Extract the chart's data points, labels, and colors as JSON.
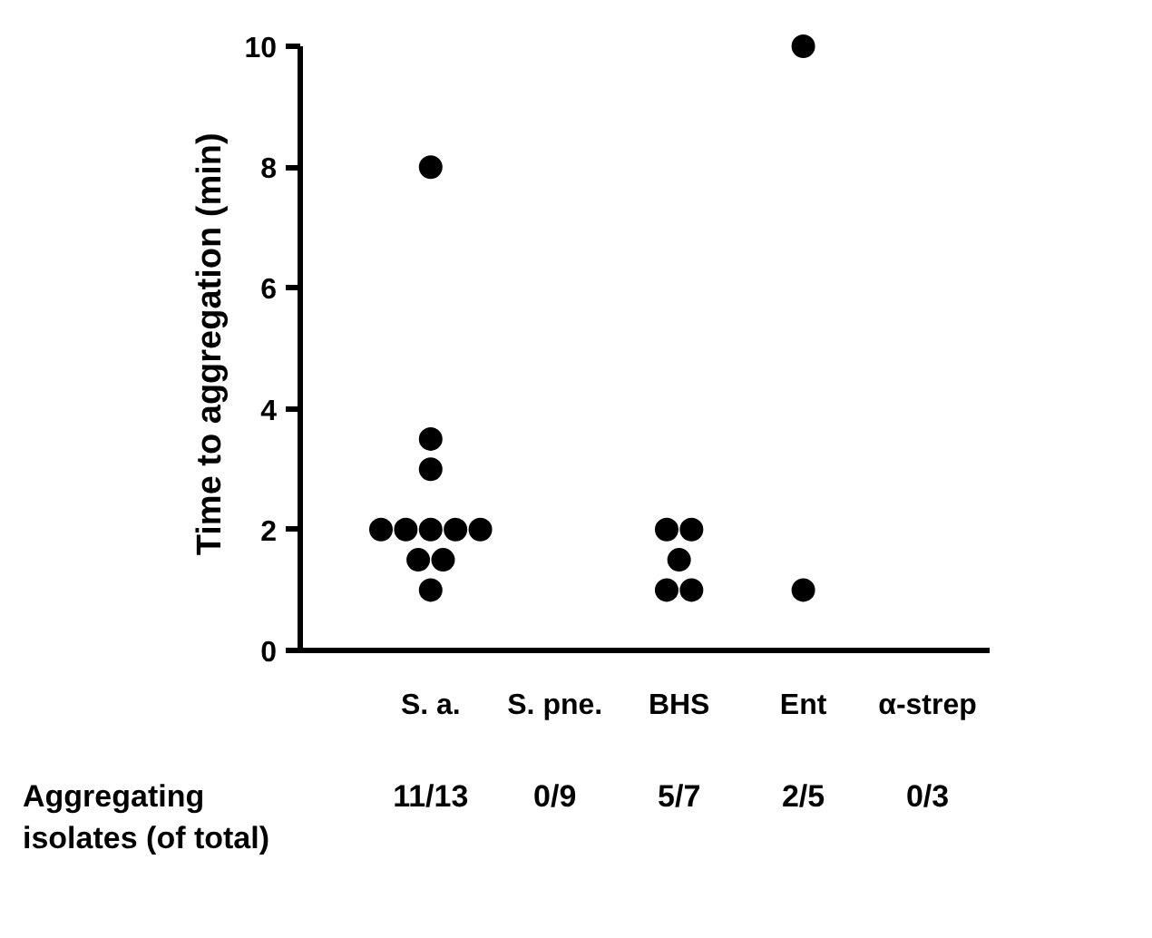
{
  "chart_data": {
    "type": "scatter",
    "ylabel": "Time to aggregation  (min)",
    "categories": [
      "S. a.",
      "S. pne.",
      "BHS",
      "Ent",
      "α-strep"
    ],
    "ylim": [
      0,
      10
    ],
    "yticks": [
      0,
      2,
      4,
      6,
      8,
      10
    ],
    "grid": false,
    "marker": "circle",
    "series": [
      {
        "color": "#000000",
        "x": [
          "S. a.",
          "S. a.",
          "S. a.",
          "S. a.",
          "S. a.",
          "S. a.",
          "S. a.",
          "S. a.",
          "S. a.",
          "S. a.",
          "S. a.",
          "BHS",
          "BHS",
          "BHS",
          "BHS",
          "BHS",
          "Ent",
          "Ent"
        ],
        "values": [
          8,
          3.5,
          3,
          2,
          2,
          2,
          2,
          2,
          1.5,
          1.5,
          1,
          2,
          2,
          1.5,
          1,
          1,
          10,
          1
        ]
      }
    ],
    "annotations": [
      "Aggregating isolates (of total)",
      "11/13",
      "0/9",
      "5/7",
      "2/5",
      "0/3"
    ]
  }
}
